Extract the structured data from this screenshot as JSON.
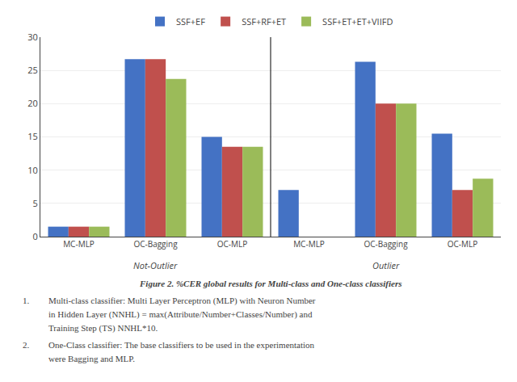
{
  "chart_data": {
    "type": "bar",
    "categories": [
      "MC-MLP",
      "OC-Bagging",
      "OC-MLP",
      "MC-MLP",
      "OC-Bagging",
      "OC-MLP"
    ],
    "series": [
      {
        "name": "SSF+EF",
        "color": "#4472C4",
        "values": [
          1.5,
          26.7,
          15.0,
          7.0,
          26.3,
          15.5
        ]
      },
      {
        "name": "SSF+RF+ET",
        "color": "#C0504D",
        "values": [
          1.5,
          26.7,
          13.5,
          0.0,
          20.0,
          7.0
        ]
      },
      {
        "name": "SSF+ET+ET+VIIFD",
        "color": "#9BBB59",
        "values": [
          1.5,
          23.7,
          13.5,
          0.0,
          20.0,
          8.7
        ]
      }
    ],
    "ylim": [
      0,
      30
    ],
    "yticks": [
      0,
      5,
      10,
      15,
      20,
      25,
      30
    ],
    "grid": true,
    "legend": "top",
    "annotations": [
      {
        "text": "Not-Outlier",
        "x": 1
      },
      {
        "text": "Outlier",
        "x": 4
      },
      "Figure 2. %CER global results for Multi-class and One-class classifiers",
      "1.",
      "Multi-class classifier: Multi Layer Perceptron (MLP) with Neuron Number",
      "in Hidden Layer (NNHL) = max(Attribute/Number+Classes/Number) and",
      "Training Step (TS) NNHL*10.",
      "2.",
      "One-Class classifier: The base classifiers to be used in the experimentation",
      "were Bagging and MLP."
    ]
  }
}
